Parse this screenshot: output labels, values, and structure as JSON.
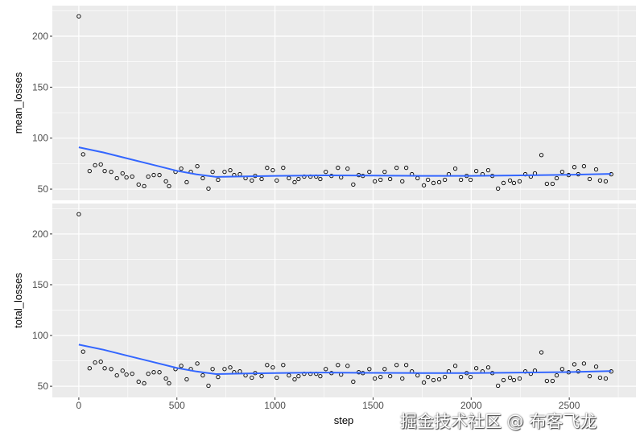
{
  "chart_data": [
    {
      "type": "scatter",
      "ylabel": "mean_losses",
      "xlabel": "step",
      "xlim": [
        -135,
        2840
      ],
      "ylim": [
        39,
        230
      ],
      "x_ticks": [
        0,
        500,
        1000,
        1500,
        2000,
        2500
      ],
      "y_ticks": [
        50,
        100,
        150,
        200
      ],
      "grid": true,
      "smooth_color": "#3366ff",
      "smooth": [
        [
          0,
          91
        ],
        [
          125,
          86
        ],
        [
          250,
          80
        ],
        [
          375,
          74
        ],
        [
          500,
          68
        ],
        [
          600,
          64.5
        ],
        [
          700,
          62
        ],
        [
          850,
          62.5
        ],
        [
          1000,
          63
        ],
        [
          1250,
          63.5
        ],
        [
          1500,
          63.2
        ],
        [
          1750,
          63
        ],
        [
          2000,
          63
        ],
        [
          2250,
          63.5
        ],
        [
          2500,
          64
        ],
        [
          2714,
          65
        ]
      ],
      "x": [
        0,
        22,
        55,
        83,
        112,
        132,
        165,
        194,
        223,
        243,
        272,
        305,
        333,
        354,
        382,
        411,
        444,
        460,
        493,
        522,
        550,
        571,
        604,
        632,
        661,
        682,
        710,
        743,
        772,
        792,
        821,
        850,
        882,
        899,
        932,
        960,
        989,
        1009,
        1042,
        1071,
        1100,
        1120,
        1149,
        1181,
        1210,
        1231,
        1259,
        1288,
        1321,
        1337,
        1370,
        1399,
        1427,
        1448,
        1481,
        1509,
        1538,
        1559,
        1587,
        1620,
        1649,
        1669,
        1698,
        1727,
        1759,
        1780,
        1808,
        1837,
        1866,
        1886,
        1919,
        1948,
        1977,
        1997,
        2026,
        2058,
        2087,
        2108,
        2137,
        2165,
        2198,
        2218,
        2247,
        2276,
        2304,
        2325,
        2358,
        2386,
        2415,
        2436,
        2464,
        2497,
        2526,
        2546,
        2575,
        2604,
        2637,
        2657,
        2686,
        2714
      ],
      "y": [
        219.5,
        84.1,
        67.7,
        73.4,
        74.2,
        67.7,
        66.9,
        60.7,
        65.4,
        61.5,
        62.3,
        54.5,
        52.9,
        62.3,
        63.8,
        63.8,
        57.6,
        52.9,
        66.9,
        70.1,
        56.8,
        66.9,
        72.4,
        60.7,
        50.5,
        66.9,
        59.1,
        66.9,
        68.5,
        63.8,
        64.6,
        60.7,
        58.4,
        63.0,
        59.9,
        70.9,
        68.5,
        58.4,
        70.9,
        60.7,
        56.8,
        59.9,
        62.3,
        62.3,
        62.3,
        59.9,
        66.9,
        63.0,
        70.9,
        61.5,
        70.1,
        54.5,
        63.8,
        63.0,
        66.9,
        57.6,
        59.1,
        66.9,
        59.9,
        70.9,
        57.6,
        70.9,
        64.6,
        60.7,
        53.7,
        59.1,
        56.0,
        56.8,
        59.1,
        64.6,
        70.1,
        59.1,
        63.0,
        59.1,
        67.7,
        64.6,
        68.5,
        63.0,
        50.5,
        56.0,
        58.4,
        56.0,
        57.6,
        64.6,
        62.3,
        65.4,
        83.4,
        55.2,
        55.2,
        60.7,
        66.9,
        63.8,
        71.6,
        64.6,
        72.4,
        59.9,
        69.3,
        58.4,
        57.6,
        64.6
      ]
    },
    {
      "type": "scatter",
      "ylabel": "total_losses",
      "xlabel": "step",
      "xlim": [
        -135,
        2840
      ],
      "ylim": [
        39,
        230
      ],
      "x_ticks": [
        0,
        500,
        1000,
        1500,
        2000,
        2500
      ],
      "y_ticks": [
        50,
        100,
        150,
        200
      ],
      "grid": true,
      "smooth_color": "#3366ff",
      "smooth": [
        [
          0,
          91
        ],
        [
          125,
          86
        ],
        [
          250,
          80
        ],
        [
          375,
          74
        ],
        [
          500,
          68
        ],
        [
          600,
          64.5
        ],
        [
          700,
          62
        ],
        [
          850,
          62.5
        ],
        [
          1000,
          63
        ],
        [
          1250,
          63.5
        ],
        [
          1500,
          63.2
        ],
        [
          1750,
          63
        ],
        [
          2000,
          63
        ],
        [
          2250,
          63.5
        ],
        [
          2500,
          64
        ],
        [
          2714,
          65
        ]
      ],
      "x": [
        0,
        22,
        55,
        83,
        112,
        132,
        165,
        194,
        223,
        243,
        272,
        305,
        333,
        354,
        382,
        411,
        444,
        460,
        493,
        522,
        550,
        571,
        604,
        632,
        661,
        682,
        710,
        743,
        772,
        792,
        821,
        850,
        882,
        899,
        932,
        960,
        989,
        1009,
        1042,
        1071,
        1100,
        1120,
        1149,
        1181,
        1210,
        1231,
        1259,
        1288,
        1321,
        1337,
        1370,
        1399,
        1427,
        1448,
        1481,
        1509,
        1538,
        1559,
        1587,
        1620,
        1649,
        1669,
        1698,
        1727,
        1759,
        1780,
        1808,
        1837,
        1866,
        1886,
        1919,
        1948,
        1977,
        1997,
        2026,
        2058,
        2087,
        2108,
        2137,
        2165,
        2198,
        2218,
        2247,
        2276,
        2304,
        2325,
        2358,
        2386,
        2415,
        2436,
        2464,
        2497,
        2526,
        2546,
        2575,
        2604,
        2637,
        2657,
        2686,
        2714
      ],
      "y": [
        219.5,
        84.1,
        67.7,
        73.4,
        74.2,
        67.7,
        66.9,
        60.7,
        65.4,
        61.5,
        62.3,
        54.5,
        52.9,
        62.3,
        63.8,
        63.8,
        57.6,
        52.9,
        66.9,
        70.1,
        56.8,
        66.9,
        72.4,
        60.7,
        50.5,
        66.9,
        59.1,
        66.9,
        68.5,
        63.8,
        64.6,
        60.7,
        58.4,
        63.0,
        59.9,
        70.9,
        68.5,
        58.4,
        70.9,
        60.7,
        56.8,
        59.9,
        62.3,
        62.3,
        62.3,
        59.9,
        66.9,
        63.0,
        70.9,
        61.5,
        70.1,
        54.5,
        63.8,
        63.0,
        66.9,
        57.6,
        59.1,
        66.9,
        59.9,
        70.9,
        57.6,
        70.9,
        64.6,
        60.7,
        53.7,
        59.1,
        56.0,
        56.8,
        59.1,
        64.6,
        70.1,
        59.1,
        63.0,
        59.1,
        67.7,
        64.6,
        68.5,
        63.0,
        50.5,
        56.0,
        58.4,
        56.0,
        57.6,
        64.6,
        62.3,
        65.4,
        83.4,
        55.2,
        55.2,
        60.7,
        66.9,
        63.8,
        71.6,
        64.6,
        72.4,
        59.9,
        69.3,
        58.4,
        57.6,
        64.6
      ]
    }
  ],
  "watermark": "掘金技术社区 @ 布客飞龙"
}
